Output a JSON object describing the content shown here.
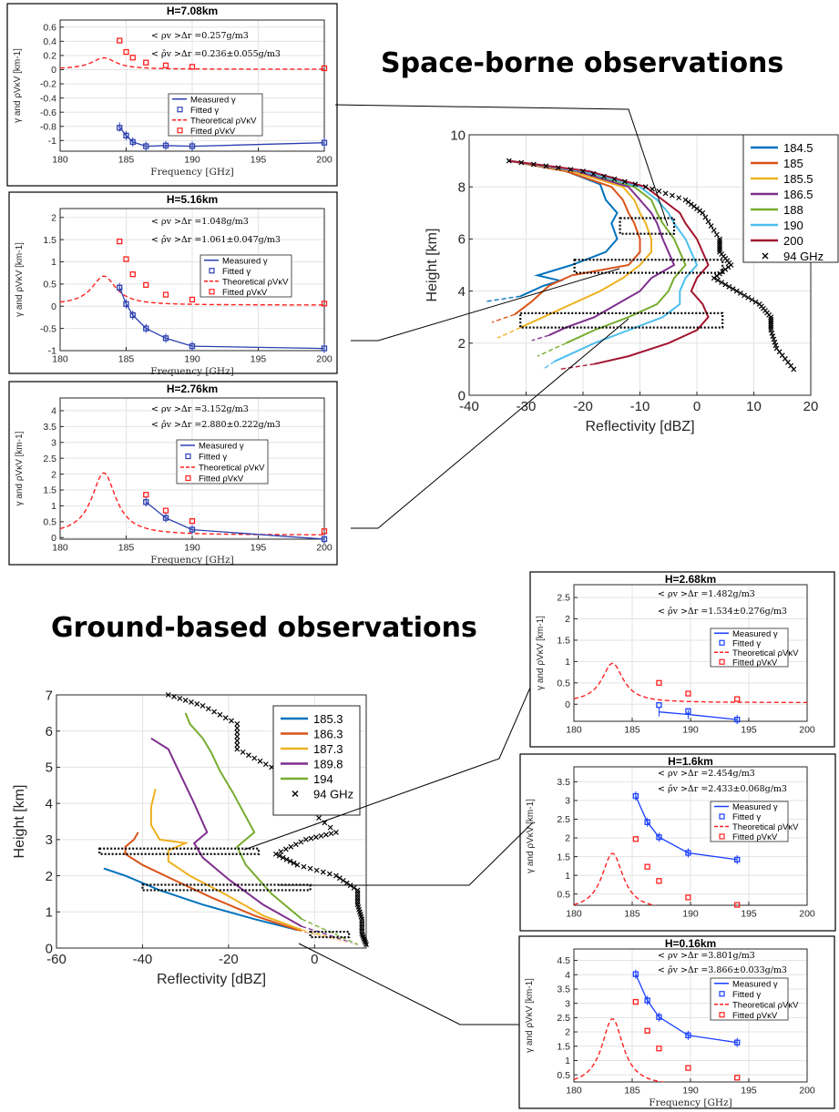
{
  "headings": {
    "space": "Space-borne observations",
    "ground": "Ground-based observations"
  },
  "colors": {
    "f184_5": "#0072bd",
    "f185": "#d95319",
    "f185_5": "#edb120",
    "f186_5": "#7e2f8e",
    "f188": "#77ac30",
    "f190": "#4dbeee",
    "f200": "#a2142f",
    "f94": "#000000",
    "measured": "#2b3fb0",
    "theory": "#ff2020"
  },
  "chart_data": [
    {
      "id": "space_profile",
      "type": "line",
      "title": "",
      "xlabel": "Reflectivity [dBZ]",
      "ylabel": "Height [km]",
      "xlim": [
        -40,
        20
      ],
      "ylim": [
        0,
        10
      ],
      "xticks": [
        "-40",
        "-30",
        "-20",
        "-10",
        "0",
        "10",
        "20"
      ],
      "yticks": [
        "0",
        "2",
        "4",
        "6",
        "8",
        "10"
      ],
      "grid": true,
      "legend": "top-right",
      "series": [
        {
          "name": "184.5",
          "color": "#0072bd",
          "x": [
            -33,
            -23,
            -17,
            -16,
            -14,
            -15,
            -14,
            -16,
            -22,
            -28,
            -24,
            -27,
            -31,
            -37
          ],
          "y": [
            9.0,
            8.6,
            8.1,
            7.5,
            7.0,
            6.6,
            6.0,
            5.5,
            5.0,
            4.6,
            4.4,
            4.2,
            3.8,
            3.6
          ]
        },
        {
          "name": "185",
          "color": "#d95319",
          "x": [
            -33,
            -23,
            -15,
            -13,
            -12,
            -11,
            -10,
            -10,
            -12,
            -22,
            -26,
            -29,
            -32,
            -36
          ],
          "y": [
            9.0,
            8.6,
            8.0,
            7.5,
            7.0,
            6.6,
            6.0,
            5.5,
            5.0,
            4.6,
            4.2,
            3.6,
            3.1,
            2.8
          ]
        },
        {
          "name": "185.5",
          "color": "#edb120",
          "x": [
            -33,
            -22,
            -13,
            -11,
            -10,
            -9,
            -8,
            -8,
            -10,
            -13,
            -17,
            -22,
            -27,
            -31,
            -35
          ],
          "y": [
            9.0,
            8.6,
            8.0,
            7.5,
            7.0,
            6.6,
            6.0,
            5.5,
            5.0,
            4.5,
            4.0,
            3.5,
            3.0,
            2.6,
            2.2
          ]
        },
        {
          "name": "186.5",
          "color": "#7e2f8e",
          "x": [
            -33,
            -21,
            -12,
            -10,
            -8,
            -7,
            -6,
            -5,
            -4,
            -8,
            -10,
            -14,
            -18,
            -23,
            -26,
            -29
          ],
          "y": [
            9.0,
            8.6,
            8.0,
            7.5,
            7.0,
            6.6,
            6.0,
            5.5,
            5.0,
            4.5,
            4.0,
            3.5,
            3.0,
            2.6,
            2.3,
            2.1
          ]
        },
        {
          "name": "188",
          "color": "#77ac30",
          "x": [
            -33,
            -20,
            -11,
            -8,
            -7,
            -6,
            -4,
            -3,
            -2,
            -4,
            -5,
            -7,
            -12,
            -18,
            -23,
            -28
          ],
          "y": [
            9.0,
            8.6,
            8.0,
            7.5,
            7.0,
            6.6,
            6.0,
            5.5,
            5.0,
            4.5,
            4.0,
            3.5,
            3.0,
            2.5,
            2.0,
            1.5
          ]
        },
        {
          "name": "190",
          "color": "#4dbeee",
          "x": [
            -33,
            -20,
            -10,
            -7,
            -5,
            -4,
            -2,
            -1,
            0,
            -2,
            -3,
            -3,
            -6,
            -12,
            -18,
            -25,
            -27
          ],
          "y": [
            9.0,
            8.6,
            8.0,
            7.5,
            7.0,
            6.6,
            6.0,
            5.5,
            5.0,
            4.5,
            4.0,
            3.5,
            3.0,
            2.5,
            2.0,
            1.3,
            1.0
          ]
        },
        {
          "name": "200",
          "color": "#a2142f",
          "x": [
            -33,
            -19,
            -9,
            -6,
            -3,
            -2,
            0,
            1,
            2,
            0,
            -1,
            1,
            2,
            0,
            -5,
            -12,
            -18,
            -24
          ],
          "y": [
            9.0,
            8.6,
            8.0,
            7.5,
            7.0,
            6.6,
            6.0,
            5.5,
            5.0,
            4.5,
            4.0,
            3.5,
            3.0,
            2.5,
            2.0,
            1.5,
            1.2,
            1.0
          ]
        },
        {
          "name": "94 GHz",
          "color": "#000000",
          "marker": "x",
          "x": [
            -33,
            -20,
            -9,
            -2,
            1,
            4,
            4,
            6,
            3,
            7,
            11,
            13,
            13,
            14,
            17
          ],
          "y": [
            9.0,
            8.6,
            8.0,
            7.5,
            7.0,
            6.0,
            5.5,
            5.0,
            4.5,
            4.0,
            3.5,
            3.0,
            2.5,
            1.8,
            1.0
          ]
        }
      ]
    },
    {
      "id": "space_h708",
      "type": "line",
      "title": "H=7.08km",
      "xlabel": "Frequency [GHz]",
      "ylabel": "γ and ρVκV [km-1]",
      "xlim": [
        180,
        200
      ],
      "ylim": [
        -1.15,
        0.7
      ],
      "xticks": [
        "180",
        "185",
        "190",
        "195",
        "200"
      ],
      "yticks": [
        "-1",
        "-0.8",
        "-0.6",
        "-0.4",
        "-0.2",
        "0",
        "0.2",
        "0.4",
        "0.6"
      ],
      "annotations": [
        "< ρv >Δr =0.257g/m3",
        "< ρ̂v >Δr =0.236±0.055g/m3"
      ],
      "legend": [
        "Measured γ",
        "Fitted γ",
        "Theoretical ρVκV",
        "Fitted ρVκV"
      ],
      "theory_scale": 0.257,
      "measured": {
        "x": [
          184.5,
          185,
          185.5,
          186.5,
          188,
          190,
          200
        ],
        "y": [
          -0.81,
          -0.93,
          -1.02,
          -1.08,
          -1.07,
          -1.08,
          -1.03
        ]
      },
      "fitted_gamma": {
        "x": [
          184.5,
          185,
          185.5,
          186.5,
          188,
          190,
          200
        ],
        "y": [
          -0.82,
          -0.93,
          -1.02,
          -1.08,
          -1.07,
          -1.08,
          -1.03
        ]
      },
      "fitted_theory": {
        "x": [
          184.5,
          185,
          185.5,
          186.5,
          188,
          190,
          200
        ],
        "y": [
          0.41,
          0.25,
          0.17,
          0.1,
          0.06,
          0.04,
          0.02
        ]
      }
    },
    {
      "id": "space_h516",
      "type": "line",
      "title": "H=5.16km",
      "xlabel": "Frequency [GHz]",
      "ylabel": "γ and ρVκV [km-1]",
      "xlim": [
        180,
        200
      ],
      "ylim": [
        -1,
        2.2
      ],
      "xticks": [
        "180",
        "185",
        "190",
        "195",
        "200"
      ],
      "yticks": [
        "-1",
        "-0.5",
        "0",
        "0.5",
        "1",
        "1.5",
        "2"
      ],
      "annotations": [
        "< ρv >Δr =1.048g/m3",
        "< ρ̂v >Δr =1.061±0.047g/m3"
      ],
      "legend": [
        "Measured γ",
        "Fitted γ",
        "Theoretical ρVκV",
        "Fitted ρVκV"
      ],
      "theory_scale": 1.048,
      "measured": {
        "x": [
          184.5,
          185,
          185.5,
          186.5,
          188,
          190,
          200
        ],
        "y": [
          0.42,
          0.05,
          -0.2,
          -0.5,
          -0.72,
          -0.9,
          -0.95
        ]
      },
      "fitted_gamma": {
        "x": [
          184.5,
          185,
          185.5,
          186.5,
          188,
          190,
          200
        ],
        "y": [
          0.42,
          0.05,
          -0.2,
          -0.5,
          -0.72,
          -0.9,
          -0.95
        ]
      },
      "fitted_theory": {
        "x": [
          184.5,
          185,
          185.5,
          186.5,
          188,
          190,
          200
        ],
        "y": [
          1.46,
          1.06,
          0.72,
          0.48,
          0.26,
          0.15,
          0.06
        ]
      }
    },
    {
      "id": "space_h276",
      "type": "line",
      "title": "H=2.76km",
      "xlabel": "Frequency [GHz]",
      "ylabel": "γ and ρVκV [km-1]",
      "xlim": [
        180,
        200
      ],
      "ylim": [
        -0.05,
        4.4
      ],
      "xticks": [
        "180",
        "185",
        "190",
        "195",
        "200"
      ],
      "yticks": [
        "0",
        "0.5",
        "1",
        "1.5",
        "2",
        "2.5",
        "3",
        "3.5",
        "4"
      ],
      "annotations": [
        "< ρv >Δr =3.152g/m3",
        "< ρ̂v >Δr =2.880±0.222g/m3"
      ],
      "legend": [
        "Measured γ",
        "Fitted γ",
        "Theoretical ρVκV",
        "Fitted ρVκV"
      ],
      "theory_scale": 3.152,
      "measured": {
        "x": [
          186.5,
          188,
          190,
          200
        ],
        "y": [
          1.12,
          0.62,
          0.25,
          -0.05
        ]
      },
      "fitted_gamma": {
        "x": [
          186.5,
          188,
          190,
          200
        ],
        "y": [
          1.12,
          0.62,
          0.25,
          -0.05
        ]
      },
      "fitted_theory": {
        "x": [
          186.5,
          188,
          190,
          200
        ],
        "y": [
          1.35,
          0.85,
          0.52,
          0.2
        ]
      }
    },
    {
      "id": "ground_profile",
      "type": "line",
      "title": "",
      "xlabel": "Reflectivity [dBZ]",
      "ylabel": "Height [km]",
      "xlim": [
        -60,
        12
      ],
      "ylim": [
        0,
        7
      ],
      "xticks": [
        "-60",
        "-40",
        "-20",
        "0"
      ],
      "yticks": [
        "0",
        "1",
        "2",
        "3",
        "4",
        "5",
        "6",
        "7"
      ],
      "grid": true,
      "legend": "top-right",
      "series": [
        {
          "name": "185.3",
          "color": "#0072bd",
          "x": [
            -49,
            -44,
            -36,
            -26,
            -14,
            -4,
            10
          ],
          "y": [
            2.2,
            2.0,
            1.6,
            1.2,
            0.8,
            0.5,
            0.1
          ]
        },
        {
          "name": "186.3",
          "color": "#d95319",
          "x": [
            -41,
            -42,
            -44,
            -44,
            -40,
            -33,
            -24,
            -14,
            -4,
            10
          ],
          "y": [
            3.2,
            3.0,
            2.8,
            2.6,
            2.3,
            1.9,
            1.4,
            0.9,
            0.5,
            0.1
          ]
        },
        {
          "name": "187.3",
          "color": "#edb120",
          "x": [
            -37,
            -38,
            -38,
            -36,
            -30,
            -34,
            -34,
            -29,
            -21,
            -12,
            -3,
            10
          ],
          "y": [
            4.4,
            3.9,
            3.4,
            3.0,
            2.9,
            2.7,
            2.4,
            2.0,
            1.5,
            0.9,
            0.5,
            0.1
          ]
        },
        {
          "name": "189.8",
          "color": "#7e2f8e",
          "x": [
            -38,
            -34,
            -32,
            -30,
            -28,
            -25,
            -28,
            -26,
            -20,
            -12,
            -3,
            10
          ],
          "y": [
            5.8,
            5.5,
            5.0,
            4.5,
            4.0,
            3.2,
            2.9,
            2.5,
            1.9,
            1.2,
            0.6,
            0.1
          ]
        },
        {
          "name": "194",
          "color": "#77ac30",
          "x": [
            -30,
            -29,
            -26,
            -24,
            -22,
            -19,
            -14,
            -18,
            -16,
            -10,
            -3,
            10
          ],
          "y": [
            6.5,
            6.2,
            5.8,
            5.4,
            4.9,
            4.3,
            3.2,
            2.8,
            2.3,
            1.5,
            0.8,
            0.1
          ]
        },
        {
          "name": "94 GHz",
          "color": "#000000",
          "marker": "x",
          "x": [
            -34,
            -26,
            -18,
            -18,
            -10,
            -5,
            -3,
            5,
            -2,
            -9,
            -4,
            5,
            10,
            10,
            11,
            11,
            12
          ],
          "y": [
            7.0,
            6.7,
            6.2,
            5.5,
            5.0,
            4.5,
            4.0,
            3.2,
            3.0,
            2.6,
            2.3,
            2.0,
            1.6,
            1.2,
            0.8,
            0.4,
            0.1
          ]
        }
      ]
    },
    {
      "id": "ground_h268",
      "type": "line",
      "title": "H=2.68km",
      "xlabel": "",
      "ylabel": "γ and ρVκV [km-1]",
      "xlim": [
        180,
        200
      ],
      "ylim": [
        -0.4,
        2.8
      ],
      "xticks": [
        "180",
        "185",
        "190",
        "195",
        "200"
      ],
      "yticks": [
        "0",
        "0.5",
        "1",
        "1.5",
        "2",
        "2.5"
      ],
      "annotations": [
        "< ρv >Δr =1.482g/m3",
        "< ρ̂v >Δr =1.534±0.276g/m3"
      ],
      "legend": [
        "Measured γ",
        "Fitted γ",
        "Theoretical ρVκV",
        "Fitted ρVκV"
      ],
      "theory_scale": 1.482,
      "measured": {
        "x": [
          187.3,
          189.8,
          194
        ],
        "y": [
          -0.18,
          -0.24,
          -0.36
        ]
      },
      "fitted_gamma": {
        "x": [
          187.3,
          189.8,
          194
        ],
        "y": [
          -0.02,
          -0.16,
          -0.36
        ]
      },
      "fitted_theory": {
        "x": [
          187.3,
          189.8,
          194
        ],
        "y": [
          0.5,
          0.25,
          0.12
        ]
      }
    },
    {
      "id": "ground_h16",
      "type": "line",
      "title": "H=1.6km",
      "xlabel": "",
      "ylabel": "γ and ρVκV [km-1]",
      "xlim": [
        180,
        200
      ],
      "ylim": [
        0.2,
        3.9
      ],
      "xticks": [
        "180",
        "185",
        "190",
        "195",
        "200"
      ],
      "yticks": [
        "0.5",
        "1",
        "1.5",
        "2",
        "2.5",
        "3",
        "3.5"
      ],
      "annotations": [
        "< ρv >Δr =2.454g/m3",
        "< ρ̂v >Δr =2.433±0.068g/m3"
      ],
      "legend": [
        "Measured γ",
        "Fitted γ",
        "Theoretical ρVκV",
        "Fitted ρVκV"
      ],
      "theory_scale": 2.454,
      "measured": {
        "x": [
          185.3,
          186.3,
          187.3,
          189.8,
          194
        ],
        "y": [
          3.12,
          2.42,
          2.02,
          1.6,
          1.42
        ]
      },
      "fitted_gamma": {
        "x": [
          185.3,
          186.3,
          187.3,
          189.8,
          194
        ],
        "y": [
          3.12,
          2.42,
          2.02,
          1.6,
          1.42
        ]
      },
      "fitted_theory": {
        "x": [
          185.3,
          186.3,
          187.3,
          189.8,
          194
        ],
        "y": [
          1.97,
          1.23,
          0.85,
          0.41,
          0.21
        ]
      }
    },
    {
      "id": "ground_h016",
      "type": "line",
      "title": "H=0.16km",
      "xlabel": "Frequency [GHz]",
      "ylabel": "γ and ρVκV [km-1]",
      "xlim": [
        180,
        200
      ],
      "ylim": [
        0.25,
        4.9
      ],
      "xticks": [
        "180",
        "185",
        "190",
        "195",
        "200"
      ],
      "yticks": [
        "0.5",
        "1",
        "1.5",
        "2",
        "2.5",
        "3",
        "3.5",
        "4",
        "4.5"
      ],
      "annotations": [
        "< ρv >Δr =3.801g/m3",
        "< ρ̂v >Δr =3.866±0.033g/m3"
      ],
      "legend": [
        "Measured γ",
        "Fitted γ",
        "Theoretical ρVκV",
        "Fitted ρVκV"
      ],
      "theory_scale": 3.801,
      "measured": {
        "x": [
          185.3,
          186.3,
          187.3,
          189.8,
          194
        ],
        "y": [
          4.02,
          3.1,
          2.52,
          1.88,
          1.63
        ]
      },
      "fitted_gamma": {
        "x": [
          185.3,
          186.3,
          187.3,
          189.8,
          194
        ],
        "y": [
          4.02,
          3.1,
          2.52,
          1.88,
          1.63
        ]
      },
      "fitted_theory": {
        "x": [
          185.3,
          186.3,
          187.3,
          189.8,
          194
        ],
        "y": [
          3.05,
          2.04,
          1.42,
          0.74,
          0.4
        ]
      }
    }
  ]
}
